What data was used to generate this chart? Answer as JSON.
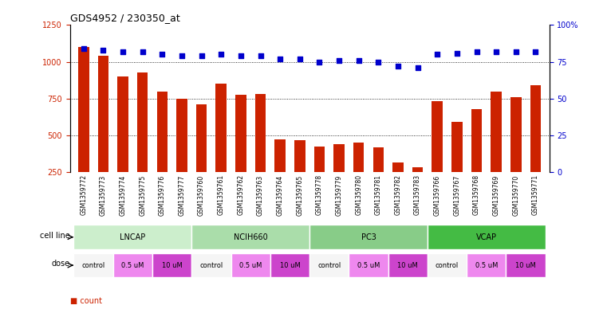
{
  "title": "GDS4952 / 230350_at",
  "samples": [
    "GSM1359772",
    "GSM1359773",
    "GSM1359774",
    "GSM1359775",
    "GSM1359776",
    "GSM1359777",
    "GSM1359760",
    "GSM1359761",
    "GSM1359762",
    "GSM1359763",
    "GSM1359764",
    "GSM1359765",
    "GSM1359778",
    "GSM1359779",
    "GSM1359780",
    "GSM1359781",
    "GSM1359782",
    "GSM1359783",
    "GSM1359766",
    "GSM1359767",
    "GSM1359768",
    "GSM1359769",
    "GSM1359770",
    "GSM1359771"
  ],
  "counts": [
    1100,
    1040,
    900,
    930,
    800,
    750,
    710,
    850,
    775,
    780,
    475,
    465,
    425,
    440,
    450,
    420,
    315,
    285,
    730,
    590,
    680,
    800,
    760,
    840
  ],
  "percentiles": [
    84,
    83,
    82,
    82,
    80,
    79,
    79,
    80,
    79,
    79,
    77,
    77,
    75,
    76,
    76,
    75,
    72,
    71,
    80,
    81,
    82,
    82,
    82,
    82
  ],
  "cell_lines": [
    {
      "name": "LNCAP",
      "start": 0,
      "end": 6
    },
    {
      "name": "NCIH660",
      "start": 6,
      "end": 12
    },
    {
      "name": "PC3",
      "start": 12,
      "end": 18
    },
    {
      "name": "VCAP",
      "start": 18,
      "end": 24
    }
  ],
  "cell_line_colors": [
    "#cceecc",
    "#aaddaa",
    "#88cc88",
    "#44bb44"
  ],
  "doses": [
    {
      "name": "control",
      "start": 0,
      "end": 2
    },
    {
      "name": "0.5 uM",
      "start": 2,
      "end": 4
    },
    {
      "name": "10 uM",
      "start": 4,
      "end": 6
    },
    {
      "name": "control",
      "start": 6,
      "end": 8
    },
    {
      "name": "0.5 uM",
      "start": 8,
      "end": 10
    },
    {
      "name": "10 uM",
      "start": 10,
      "end": 12
    },
    {
      "name": "control",
      "start": 12,
      "end": 14
    },
    {
      "name": "0.5 uM",
      "start": 14,
      "end": 16
    },
    {
      "name": "10 uM",
      "start": 16,
      "end": 18
    },
    {
      "name": "control",
      "start": 18,
      "end": 20
    },
    {
      "name": "0.5 uM",
      "start": 20,
      "end": 22
    },
    {
      "name": "10 uM",
      "start": 22,
      "end": 24
    }
  ],
  "dose_colors": {
    "control": "#f5f5f5",
    "0.5 uM": "#ee88ee",
    "10 uM": "#cc44cc"
  },
  "bar_color": "#cc2200",
  "dot_color": "#0000cc",
  "ylim_left": [
    250,
    1250
  ],
  "ylim_right": [
    0,
    100
  ],
  "yticks_left": [
    250,
    500,
    750,
    1000,
    1250
  ],
  "yticks_right": [
    0,
    25,
    50,
    75,
    100
  ],
  "grid_values": [
    500,
    750,
    1000
  ],
  "xtick_bg": "#cccccc",
  "background_color": "#ffffff",
  "cell_line_row_bg": "#cccccc",
  "dose_row_bg": "#cccccc"
}
